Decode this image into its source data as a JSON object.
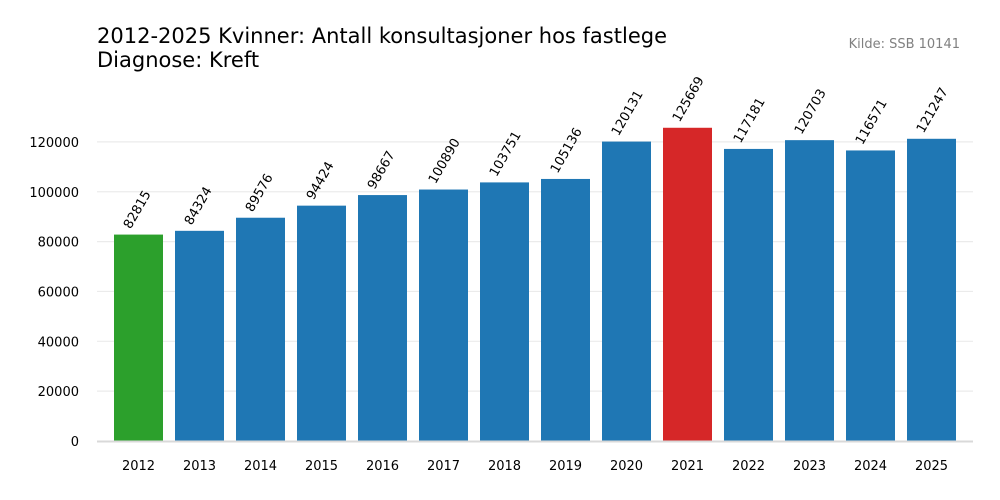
{
  "title_line1": "2012-2025 Kvinner: Antall konsultasjoner hos fastlege",
  "title_line2": "Diagnose: Kreft",
  "source": "Kilde: SSB 10141",
  "chart_data": {
    "type": "bar",
    "title": "2012-2025 Kvinner: Antall konsultasjoner hos fastlege",
    "subtitle": "Diagnose: Kreft",
    "categories": [
      "2012",
      "2013",
      "2014",
      "2015",
      "2016",
      "2017",
      "2018",
      "2019",
      "2020",
      "2021",
      "2022",
      "2023",
      "2024",
      "2025"
    ],
    "values": [
      82815,
      84324,
      89576,
      94424,
      98667,
      100890,
      103751,
      105136,
      120131,
      125669,
      117181,
      120703,
      116571,
      121247
    ],
    "colors": [
      "#2ca02c",
      "#1f77b4",
      "#1f77b4",
      "#1f77b4",
      "#1f77b4",
      "#1f77b4",
      "#1f77b4",
      "#1f77b4",
      "#1f77b4",
      "#d62728",
      "#1f77b4",
      "#1f77b4",
      "#1f77b4",
      "#1f77b4"
    ],
    "yticks": [
      0,
      20000,
      40000,
      60000,
      80000,
      100000,
      120000
    ],
    "ylim": [
      0,
      135000
    ],
    "grid": true,
    "gridColor": "#ebebeb",
    "xlabel": "",
    "ylabel": ""
  }
}
